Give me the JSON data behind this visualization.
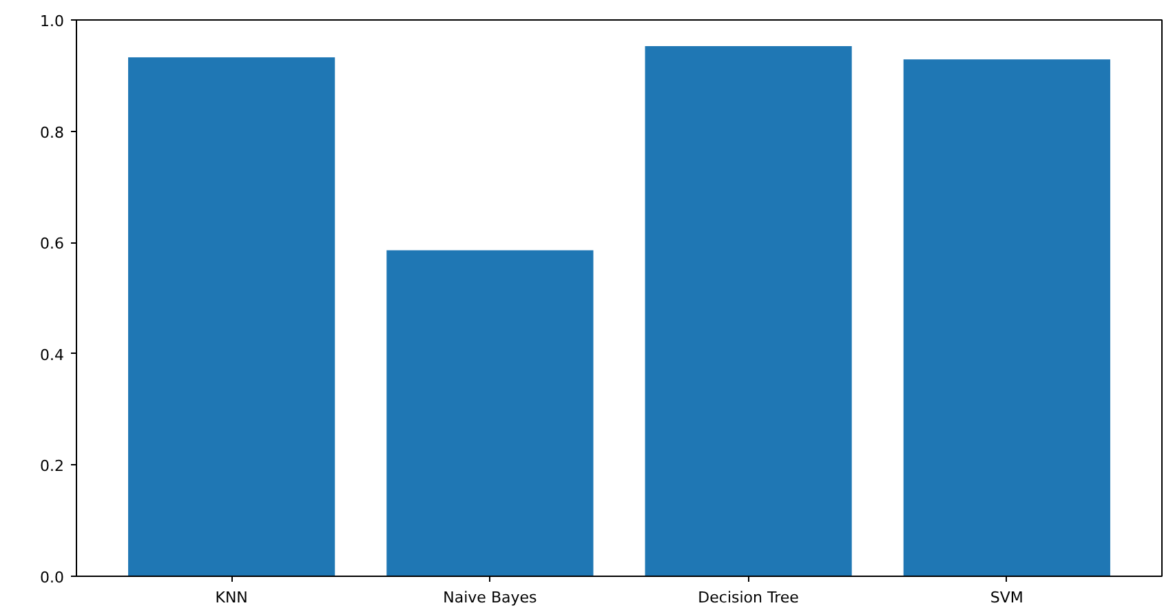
{
  "chart_data": {
    "type": "bar",
    "categories": [
      "KNN",
      "Naive Bayes",
      "Decision Tree",
      "SVM"
    ],
    "values": [
      0.933,
      0.586,
      0.953,
      0.929
    ],
    "color": "#1f77b4",
    "ylim": [
      0.0,
      1.0
    ],
    "yticks": [
      {
        "value": 0.0,
        "label": "0.0"
      },
      {
        "value": 0.2,
        "label": "0.2"
      },
      {
        "value": 0.4,
        "label": "0.4"
      },
      {
        "value": 0.6,
        "label": "0.6"
      },
      {
        "value": 0.8,
        "label": "0.8"
      },
      {
        "value": 1.0,
        "label": "1.0"
      }
    ],
    "grid": false
  }
}
